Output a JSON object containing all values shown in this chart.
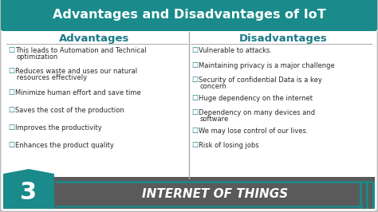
{
  "title": "Advantages and Disadvantages of IoT",
  "title_bg": "#1a8a8a",
  "title_color": "#ffffff",
  "advantages_header": "Advantages",
  "disadvantages_header": "Disadvantages",
  "header_color": "#1a7a8a",
  "advantages": [
    "This leads to Automation and Technical\noptimization",
    "Reduces waste and uses our natural\nresources effectively",
    "Minimize human effort and save time",
    "Saves the cost of the production",
    "Improves the productivity",
    "Enhances the product quality"
  ],
  "disadvantages": [
    "Vulnerable to attacks.",
    "Maintaining privacy is a major challenge",
    "Security of confidential Data is a key\nconcern",
    "Huge dependency on the internet",
    "Dependency on many devices and\nsoftware",
    "We may lose control of our lives.",
    "Risk of losing jobs"
  ],
  "text_color": "#2a2a2a",
  "bullet_color": "#1a7a8a",
  "bg_color": "#ffffff",
  "footer_bg": "#5a5a5a",
  "footer_teal": "#1a8a8a",
  "footer_number": "3",
  "footer_text": "INTERNET OF THINGS",
  "divider_color": "#aaaaaa",
  "border_color": "#cccccc"
}
